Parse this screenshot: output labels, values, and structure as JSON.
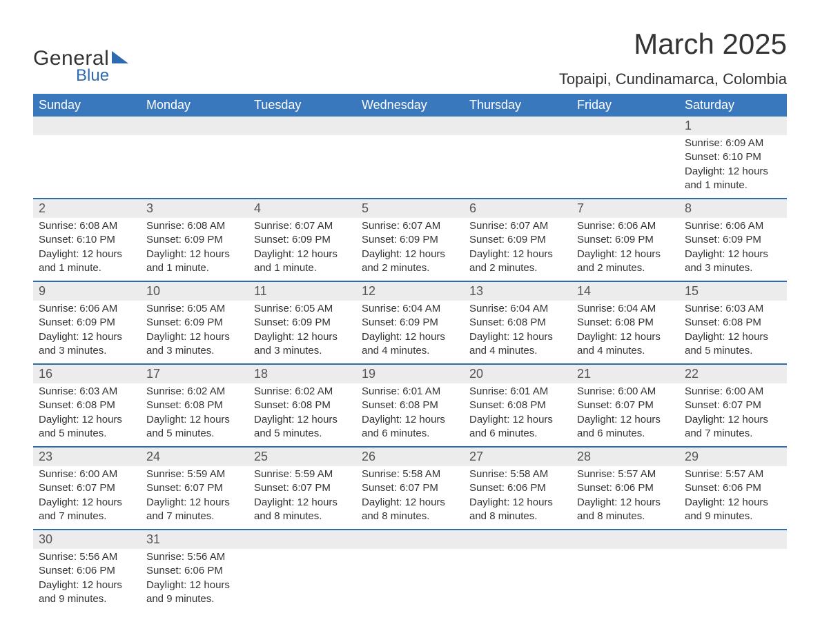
{
  "logo": {
    "line1": "General",
    "line2": "Blue",
    "brand_color": "#2d6ab0"
  },
  "title": "March 2025",
  "subtitle": "Topaipi, Cundinamarca, Colombia",
  "colors": {
    "header_bg": "#3a78bd",
    "header_text": "#ffffff",
    "daynum_bg": "#ececec",
    "row_border": "#2d6ab0",
    "body_text": "#333333"
  },
  "column_headers": [
    "Sunday",
    "Monday",
    "Tuesday",
    "Wednesday",
    "Thursday",
    "Friday",
    "Saturday"
  ],
  "weeks": [
    {
      "daynums": [
        "",
        "",
        "",
        "",
        "",
        "",
        "1"
      ],
      "cells": [
        null,
        null,
        null,
        null,
        null,
        null,
        {
          "sunrise": "Sunrise: 6:09 AM",
          "sunset": "Sunset: 6:10 PM",
          "daylight": "Daylight: 12 hours and 1 minute."
        }
      ]
    },
    {
      "daynums": [
        "2",
        "3",
        "4",
        "5",
        "6",
        "7",
        "8"
      ],
      "cells": [
        {
          "sunrise": "Sunrise: 6:08 AM",
          "sunset": "Sunset: 6:10 PM",
          "daylight": "Daylight: 12 hours and 1 minute."
        },
        {
          "sunrise": "Sunrise: 6:08 AM",
          "sunset": "Sunset: 6:09 PM",
          "daylight": "Daylight: 12 hours and 1 minute."
        },
        {
          "sunrise": "Sunrise: 6:07 AM",
          "sunset": "Sunset: 6:09 PM",
          "daylight": "Daylight: 12 hours and 1 minute."
        },
        {
          "sunrise": "Sunrise: 6:07 AM",
          "sunset": "Sunset: 6:09 PM",
          "daylight": "Daylight: 12 hours and 2 minutes."
        },
        {
          "sunrise": "Sunrise: 6:07 AM",
          "sunset": "Sunset: 6:09 PM",
          "daylight": "Daylight: 12 hours and 2 minutes."
        },
        {
          "sunrise": "Sunrise: 6:06 AM",
          "sunset": "Sunset: 6:09 PM",
          "daylight": "Daylight: 12 hours and 2 minutes."
        },
        {
          "sunrise": "Sunrise: 6:06 AM",
          "sunset": "Sunset: 6:09 PM",
          "daylight": "Daylight: 12 hours and 3 minutes."
        }
      ]
    },
    {
      "daynums": [
        "9",
        "10",
        "11",
        "12",
        "13",
        "14",
        "15"
      ],
      "cells": [
        {
          "sunrise": "Sunrise: 6:06 AM",
          "sunset": "Sunset: 6:09 PM",
          "daylight": "Daylight: 12 hours and 3 minutes."
        },
        {
          "sunrise": "Sunrise: 6:05 AM",
          "sunset": "Sunset: 6:09 PM",
          "daylight": "Daylight: 12 hours and 3 minutes."
        },
        {
          "sunrise": "Sunrise: 6:05 AM",
          "sunset": "Sunset: 6:09 PM",
          "daylight": "Daylight: 12 hours and 3 minutes."
        },
        {
          "sunrise": "Sunrise: 6:04 AM",
          "sunset": "Sunset: 6:09 PM",
          "daylight": "Daylight: 12 hours and 4 minutes."
        },
        {
          "sunrise": "Sunrise: 6:04 AM",
          "sunset": "Sunset: 6:08 PM",
          "daylight": "Daylight: 12 hours and 4 minutes."
        },
        {
          "sunrise": "Sunrise: 6:04 AM",
          "sunset": "Sunset: 6:08 PM",
          "daylight": "Daylight: 12 hours and 4 minutes."
        },
        {
          "sunrise": "Sunrise: 6:03 AM",
          "sunset": "Sunset: 6:08 PM",
          "daylight": "Daylight: 12 hours and 5 minutes."
        }
      ]
    },
    {
      "daynums": [
        "16",
        "17",
        "18",
        "19",
        "20",
        "21",
        "22"
      ],
      "cells": [
        {
          "sunrise": "Sunrise: 6:03 AM",
          "sunset": "Sunset: 6:08 PM",
          "daylight": "Daylight: 12 hours and 5 minutes."
        },
        {
          "sunrise": "Sunrise: 6:02 AM",
          "sunset": "Sunset: 6:08 PM",
          "daylight": "Daylight: 12 hours and 5 minutes."
        },
        {
          "sunrise": "Sunrise: 6:02 AM",
          "sunset": "Sunset: 6:08 PM",
          "daylight": "Daylight: 12 hours and 5 minutes."
        },
        {
          "sunrise": "Sunrise: 6:01 AM",
          "sunset": "Sunset: 6:08 PM",
          "daylight": "Daylight: 12 hours and 6 minutes."
        },
        {
          "sunrise": "Sunrise: 6:01 AM",
          "sunset": "Sunset: 6:08 PM",
          "daylight": "Daylight: 12 hours and 6 minutes."
        },
        {
          "sunrise": "Sunrise: 6:00 AM",
          "sunset": "Sunset: 6:07 PM",
          "daylight": "Daylight: 12 hours and 6 minutes."
        },
        {
          "sunrise": "Sunrise: 6:00 AM",
          "sunset": "Sunset: 6:07 PM",
          "daylight": "Daylight: 12 hours and 7 minutes."
        }
      ]
    },
    {
      "daynums": [
        "23",
        "24",
        "25",
        "26",
        "27",
        "28",
        "29"
      ],
      "cells": [
        {
          "sunrise": "Sunrise: 6:00 AM",
          "sunset": "Sunset: 6:07 PM",
          "daylight": "Daylight: 12 hours and 7 minutes."
        },
        {
          "sunrise": "Sunrise: 5:59 AM",
          "sunset": "Sunset: 6:07 PM",
          "daylight": "Daylight: 12 hours and 7 minutes."
        },
        {
          "sunrise": "Sunrise: 5:59 AM",
          "sunset": "Sunset: 6:07 PM",
          "daylight": "Daylight: 12 hours and 8 minutes."
        },
        {
          "sunrise": "Sunrise: 5:58 AM",
          "sunset": "Sunset: 6:07 PM",
          "daylight": "Daylight: 12 hours and 8 minutes."
        },
        {
          "sunrise": "Sunrise: 5:58 AM",
          "sunset": "Sunset: 6:06 PM",
          "daylight": "Daylight: 12 hours and 8 minutes."
        },
        {
          "sunrise": "Sunrise: 5:57 AM",
          "sunset": "Sunset: 6:06 PM",
          "daylight": "Daylight: 12 hours and 8 minutes."
        },
        {
          "sunrise": "Sunrise: 5:57 AM",
          "sunset": "Sunset: 6:06 PM",
          "daylight": "Daylight: 12 hours and 9 minutes."
        }
      ]
    },
    {
      "daynums": [
        "30",
        "31",
        "",
        "",
        "",
        "",
        ""
      ],
      "cells": [
        {
          "sunrise": "Sunrise: 5:56 AM",
          "sunset": "Sunset: 6:06 PM",
          "daylight": "Daylight: 12 hours and 9 minutes."
        },
        {
          "sunrise": "Sunrise: 5:56 AM",
          "sunset": "Sunset: 6:06 PM",
          "daylight": "Daylight: 12 hours and 9 minutes."
        },
        null,
        null,
        null,
        null,
        null
      ]
    }
  ]
}
